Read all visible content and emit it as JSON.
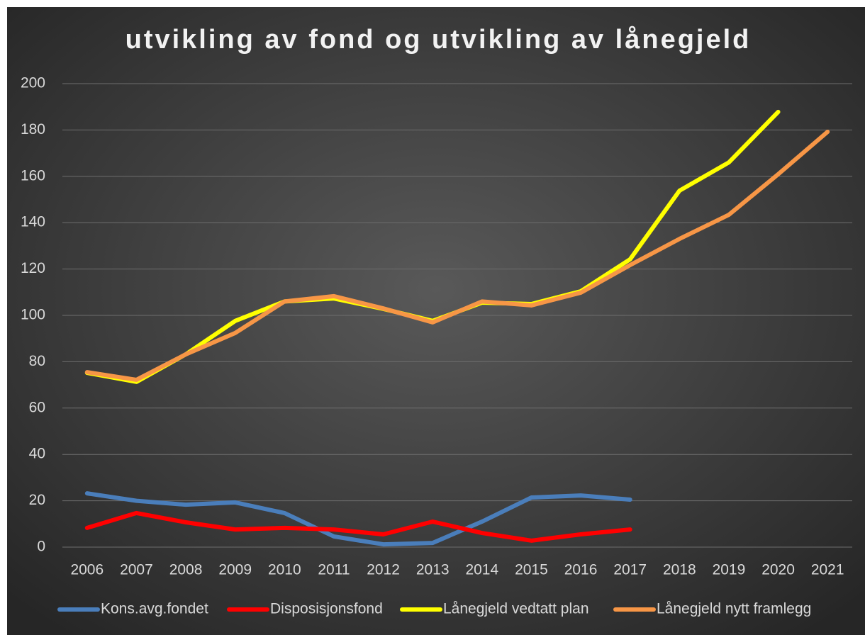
{
  "chart_data": {
    "type": "line",
    "title": "utvikling av fond og utvikling av lånegjeld",
    "categories": [
      "2006",
      "2007",
      "2008",
      "2009",
      "2010",
      "2011",
      "2012",
      "2013",
      "2014",
      "2015",
      "2016",
      "2017",
      "2018",
      "2019",
      "2020",
      "2021"
    ],
    "series": [
      {
        "name": "Kons.avg.fondet",
        "color": "#4a7ebb",
        "values": [
          23.2,
          20,
          18.3,
          19.3,
          14.7,
          4.6,
          1.2,
          1.8,
          11,
          21.4,
          22.3,
          20.5,
          null,
          null,
          null,
          null
        ]
      },
      {
        "name": "Disposisjonsfond",
        "color": "#ff0000",
        "values": [
          8.3,
          14.7,
          10.7,
          7.6,
          8.3,
          7.6,
          5.5,
          11,
          6.1,
          2.8,
          5.5,
          7.6,
          null,
          null,
          null,
          null
        ]
      },
      {
        "name": "Lånegjeld vedtatt plan",
        "color": "#ffff00",
        "values": [
          75.2,
          71.3,
          83.2,
          97.6,
          106,
          107.3,
          102.8,
          97.6,
          105.5,
          104.9,
          110.4,
          124.2,
          153.8,
          166,
          187.8,
          null
        ]
      },
      {
        "name": "Lånegjeld nytt framlegg",
        "color": "#f79646",
        "values": [
          75.5,
          72.2,
          83.2,
          92.4,
          106,
          108.3,
          103,
          97,
          106,
          104.3,
          109.8,
          121.7,
          133,
          143.4,
          160.9,
          179.2
        ]
      }
    ],
    "ylim": [
      0,
      200
    ],
    "yticks": [
      0,
      20,
      40,
      60,
      80,
      100,
      120,
      140,
      160,
      180,
      200
    ],
    "grid": true,
    "legend": "bottom"
  }
}
